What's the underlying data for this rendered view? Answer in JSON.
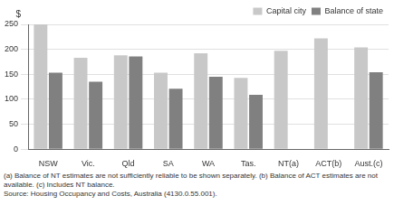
{
  "chart_data": {
    "type": "bar",
    "y_label": "$",
    "categories": [
      "NSW",
      "Vic.",
      "Qld",
      "SA",
      "WA",
      "Tas.",
      "NT(a)",
      "ACT(b)",
      "Aust.(c)"
    ],
    "series": [
      {
        "name": "Capital city",
        "color": "#c8c8c8",
        "values": [
          250,
          183,
          188,
          153,
          192,
          143,
          197,
          222,
          204
        ]
      },
      {
        "name": "Balance of state",
        "color": "#808080",
        "values": [
          153,
          135,
          186,
          121,
          145,
          109,
          null,
          null,
          154
        ]
      }
    ],
    "ylim": [
      0,
      250
    ],
    "yticks": [
      0,
      50,
      100,
      150,
      200,
      250
    ],
    "grid": true,
    "legend": "upper right",
    "annotations": [
      "(a) Balance of NT estimates are not sufficiently reliable to be shown separately. (b) Balance of ACT estimates are not available. (c) Includes NT balance.",
      "Source: Housing Occupancy and Costs, Australia (4130.0.55.001)."
    ]
  }
}
